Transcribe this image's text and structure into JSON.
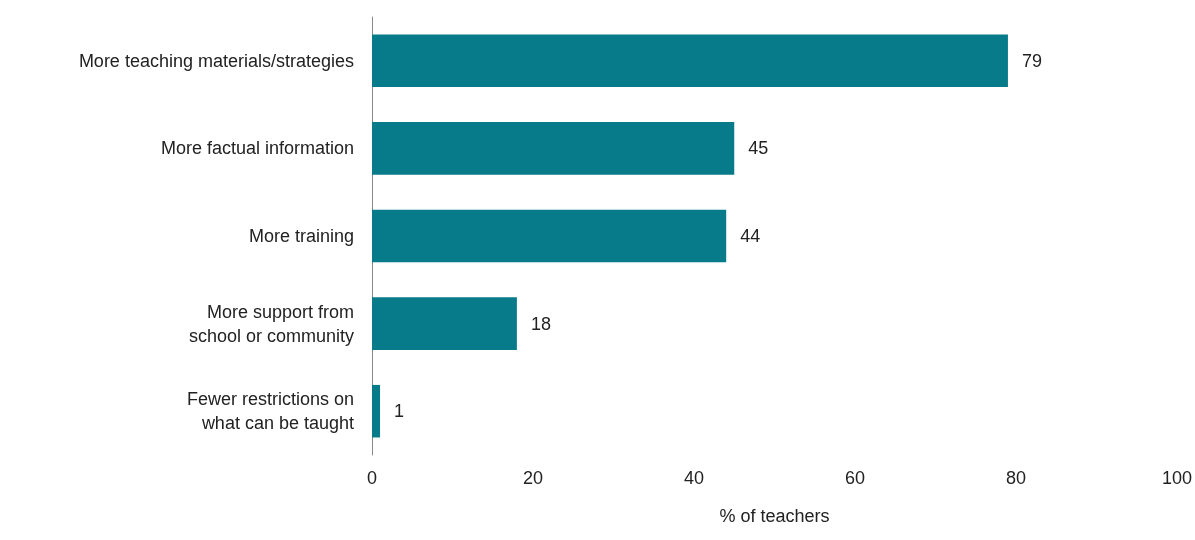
{
  "chart_data": {
    "type": "bar",
    "orientation": "horizontal",
    "categories": [
      "More teaching materials/strategies",
      "More factual information",
      "More training",
      "More support from\nschool or community",
      "Fewer restrictions on\nwhat can be taught"
    ],
    "values": [
      79,
      45,
      44,
      18,
      1
    ],
    "color": "#077b8a",
    "xlim": [
      0,
      100
    ],
    "xticks": [
      0,
      20,
      40,
      60,
      80,
      100
    ],
    "xlabel": "% of teachers",
    "data_labels": true,
    "grid": false
  }
}
